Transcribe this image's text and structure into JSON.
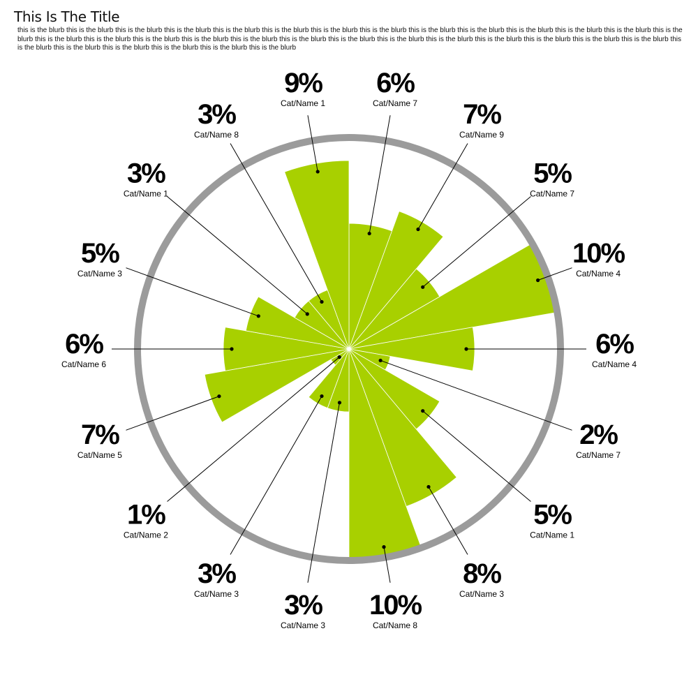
{
  "title": "This Is The Title",
  "blurb": "this is the blurb this is the blurb this is the blurb this is the blurb this is the blurb this is the blurb this is the blurb this is the blurb this is the blurb this is the blurb this is the blurb this is the blurb this is the blurb this is the blurb this is the blurb this is the blurb this is the blurb this is the blurb this is the blurb this is the blurb this is the blurb this is the blurb this is the blurb this is the blurb this is the blurb this is the blurb this is the blurb this is the blurb this is the blurb this is the blurb this is the blurb this is the blurb this is the blurb",
  "colors": {
    "bar": "#a8d000",
    "ring": "#9b9b9b",
    "leader": "#000000"
  },
  "chart_data": {
    "type": "bar",
    "subtype": "polar",
    "rmax": 10,
    "categories": [
      "Cat/Name 7",
      "Cat/Name 9",
      "Cat/Name 7",
      "Cat/Name 4",
      "Cat/Name 4",
      "Cat/Name 7",
      "Cat/Name 1",
      "Cat/Name 3",
      "Cat/Name 8",
      "Cat/Name 3",
      "Cat/Name 3",
      "Cat/Name 2",
      "Cat/Name 5",
      "Cat/Name 6",
      "Cat/Name 3",
      "Cat/Name 1",
      "Cat/Name 8",
      "Cat/Name 1"
    ],
    "values": [
      6,
      7,
      5,
      10,
      6,
      2,
      5,
      8,
      10,
      3,
      3,
      1,
      7,
      6,
      5,
      3,
      3,
      9
    ],
    "labels": [
      "6%",
      "7%",
      "5%",
      "10%",
      "6%",
      "2%",
      "5%",
      "8%",
      "10%",
      "3%",
      "3%",
      "1%",
      "7%",
      "6%",
      "5%",
      "3%",
      "3%",
      "9%"
    ]
  }
}
